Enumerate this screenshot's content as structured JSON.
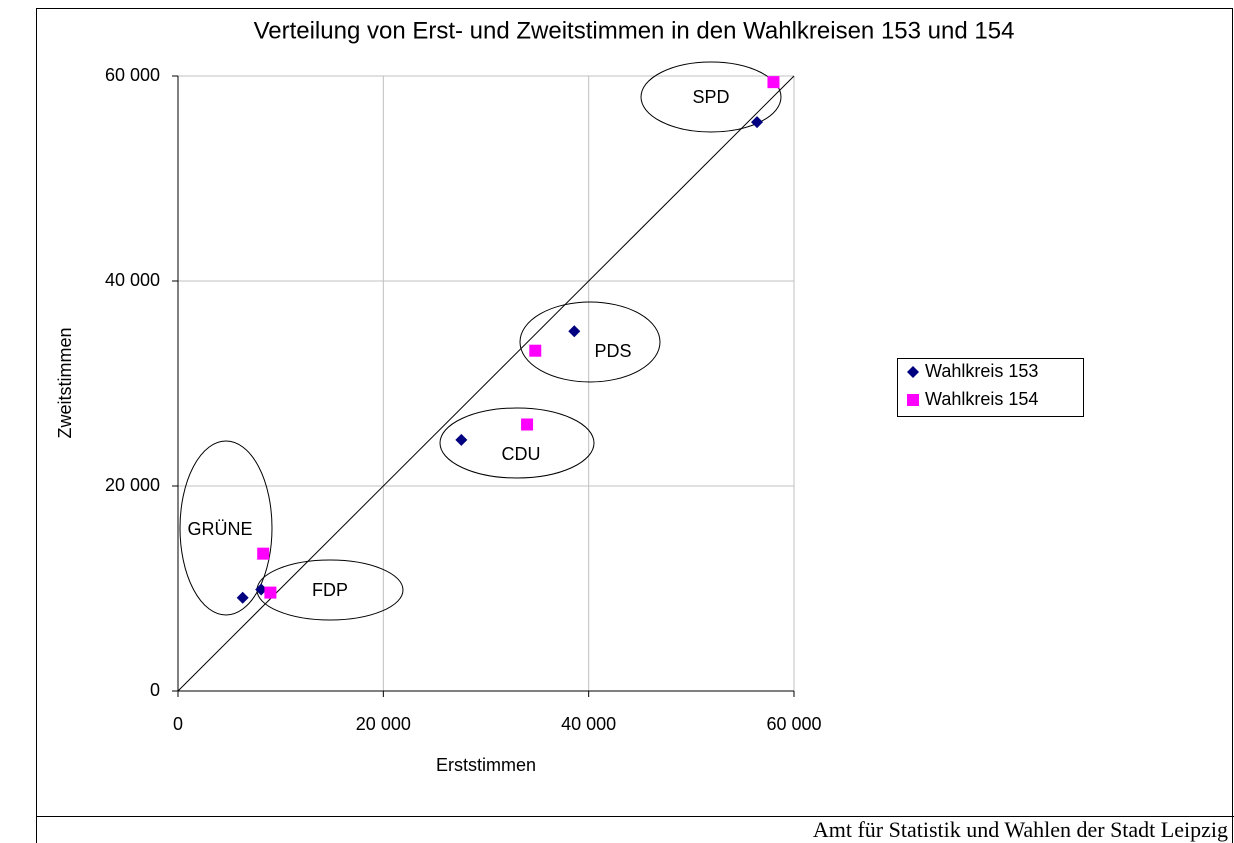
{
  "chart_data": {
    "type": "scatter",
    "title": "Verteilung von Erst- und Zweitstimmen in den Wahlkreisen 153 und 154",
    "x_label": "Erststimmen",
    "y_label": "Zweitstimmen",
    "xlim": [
      0,
      60000
    ],
    "ylim": [
      0,
      60000
    ],
    "xticks": [
      0,
      {
        "value": 20000,
        "label": "20 000"
      },
      {
        "value": 40000,
        "label": "40 000"
      },
      {
        "value": 60000,
        "label": "60 000"
      }
    ],
    "yticks": [
      0,
      {
        "value": 20000,
        "label": "20 000"
      },
      {
        "value": 40000,
        "label": "40 000"
      },
      {
        "value": 60000,
        "label": "60 000"
      }
    ],
    "grid": true,
    "legend": "right",
    "series": [
      {
        "name": "Wahlkreis 153",
        "color": "#000080",
        "marker": "diamond",
        "x": [
          6300,
          8100,
          27600,
          38600,
          56400
        ],
        "values": [
          9100,
          9900,
          24500,
          35100,
          55500
        ]
      },
      {
        "name": "Wahlkreis 154",
        "color": "#ff00ff",
        "marker": "square",
        "x": [
          8300,
          9000,
          34000,
          34800,
          58000
        ],
        "values": [
          13400,
          9600,
          26000,
          33200,
          59400
        ]
      }
    ],
    "annotations": [
      "SPD",
      "PDS",
      "CDU",
      "GRÜNE",
      "FDP"
    ],
    "source": "Amt für Statistik und Wahlen der Stadt Leipzig"
  }
}
